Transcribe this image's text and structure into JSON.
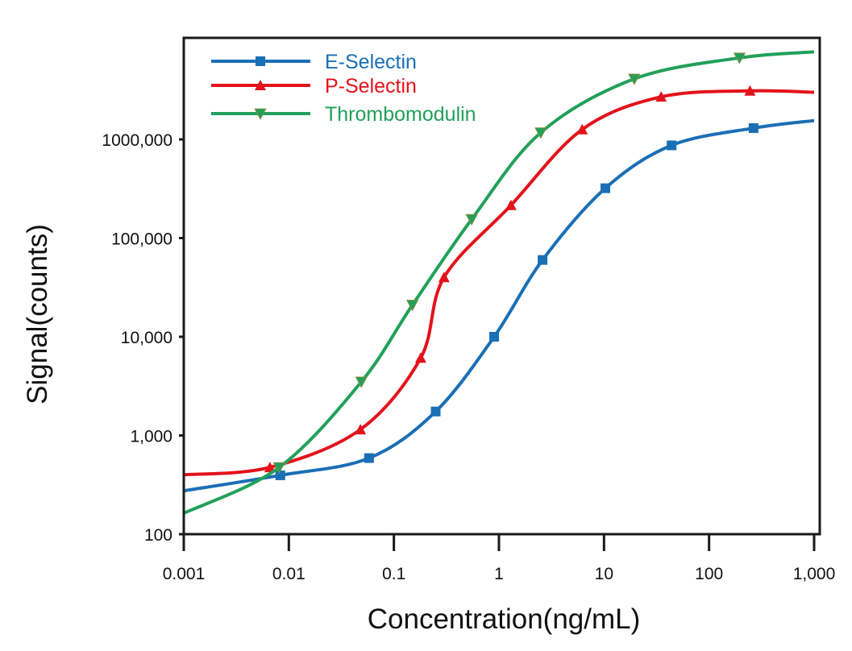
{
  "chart_data": {
    "type": "line",
    "title": "",
    "xlabel": "Concentration(ng/mL)",
    "ylabel": "Signal(counts)",
    "x_scale": "log",
    "y_scale": "log",
    "xlim": [
      0.001,
      1000
    ],
    "ylim": [
      100,
      10000000
    ],
    "x_ticks": [
      0.001,
      0.01,
      0.1,
      1,
      10,
      100,
      1000
    ],
    "x_tick_labels": [
      "0.001",
      "0.01",
      "0.1",
      "1",
      "10",
      "100",
      "1,000"
    ],
    "y_ticks": [
      100,
      1000,
      10000,
      100000,
      1000000
    ],
    "y_tick_labels": [
      "100",
      "1,000",
      "10,000",
      "100,000",
      "1000,000"
    ],
    "grid": false,
    "legend_position": "top-left",
    "series": [
      {
        "name": "E-Selectin",
        "color": "#1a6fb5",
        "marker": "square",
        "curve_ends": [
          [
            0.001,
            275
          ],
          [
            1000,
            1550000
          ]
        ],
        "points": [
          [
            0.0083,
            395
          ],
          [
            0.058,
            590
          ],
          [
            0.25,
            1750
          ],
          [
            0.9,
            10000
          ],
          [
            2.6,
            60000
          ],
          [
            10.3,
            320000
          ],
          [
            44,
            870000
          ],
          [
            265,
            1300000
          ]
        ]
      },
      {
        "name": "P-Selectin",
        "color": "#e3121b",
        "marker": "triangle-up",
        "curve_ends": [
          [
            0.001,
            400
          ],
          [
            1000,
            3000000
          ]
        ],
        "points": [
          [
            0.0066,
            475
          ],
          [
            0.048,
            1150
          ],
          [
            0.18,
            6100
          ],
          [
            0.3,
            40000
          ],
          [
            1.3,
            215000
          ],
          [
            6.2,
            1260000
          ],
          [
            35,
            2700000
          ],
          [
            245,
            3100000
          ]
        ]
      },
      {
        "name": "Thrombomodulin",
        "color": "#22a05a",
        "marker": "triangle-down",
        "curve_ends": [
          [
            0.001,
            163
          ],
          [
            1000,
            7700000
          ]
        ],
        "points": [
          [
            0.0081,
            475
          ],
          [
            0.049,
            3500
          ],
          [
            0.15,
            21000
          ],
          [
            0.55,
            155000
          ],
          [
            2.5,
            1170000
          ],
          [
            19.4,
            4100000
          ],
          [
            195,
            6700000
          ]
        ]
      }
    ]
  }
}
